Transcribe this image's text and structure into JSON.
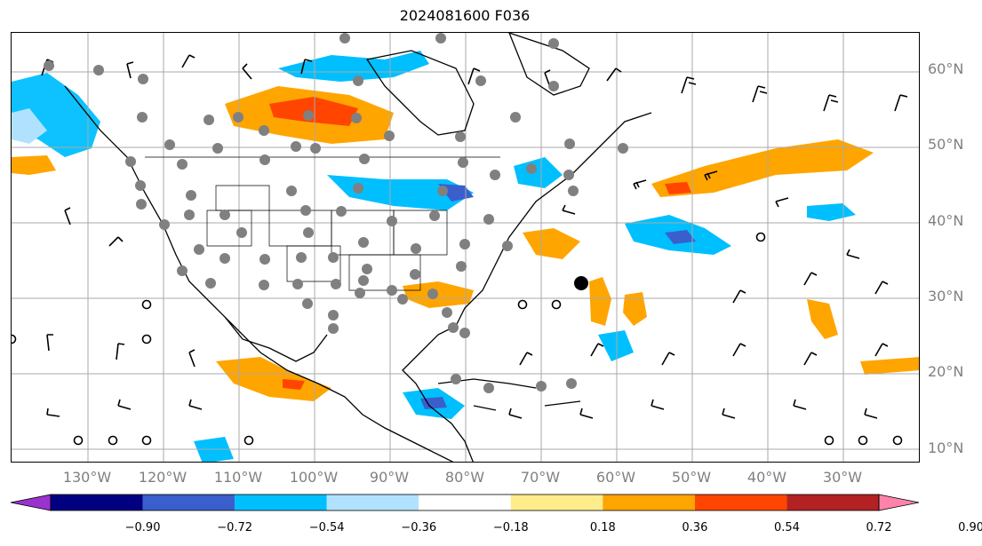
{
  "title": "2024081600 F036",
  "lat_labels": [
    "60°N",
    "50°N",
    "40°N",
    "30°N",
    "20°N",
    "10°N"
  ],
  "lon_labels": [
    "130°W",
    "120°W",
    "110°W",
    "100°W",
    "90°W",
    "80°W",
    "70°W",
    "60°W",
    "50°W",
    "40°W",
    "30°W"
  ],
  "colorbar": {
    "ticks": [
      "−0.90",
      "−0.72",
      "−0.54",
      "−0.36",
      "−0.18",
      "0.18",
      "0.36",
      "0.54",
      "0.72",
      "0.90"
    ],
    "colors": [
      "#9a32cd",
      "#000080",
      "#3a5fcd",
      "#00bfff",
      "#b0e2ff",
      "#ffffff",
      "#ffec8b",
      "#ffa500",
      "#ff4500",
      "#b22222",
      "#ff82ab"
    ]
  },
  "colors": {
    "axis_label": "#808080",
    "coast": "#000000",
    "grid": "#a9a9a9"
  }
}
